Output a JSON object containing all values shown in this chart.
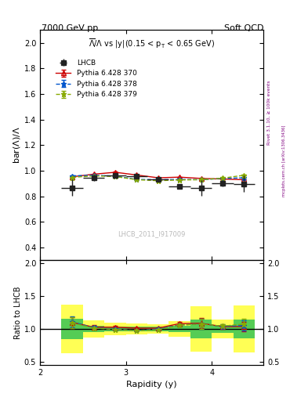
{
  "title_left": "7000 GeV pp",
  "title_right": "Soft QCD",
  "main_title": "$\\overline{\\Lambda}/\\Lambda$ vs |y|(0.15 < p$_{\\rm T}$ < 0.65 GeV)",
  "ylabel_main": "bar($\\Lambda$)/$\\Lambda$",
  "ylabel_ratio": "Ratio to LHCB",
  "xlabel": "Rapidity (y)",
  "watermark": "LHCB_2011_I917009",
  "rivet_label": "Rivet 3.1.10, ≥ 100k events",
  "arxiv_label": "mcplots.cern.ch [arXiv:1306.3436]",
  "lhcb_x": [
    2.375,
    2.625,
    2.875,
    3.125,
    3.375,
    3.625,
    3.875,
    4.125,
    4.375
  ],
  "lhcb_y": [
    0.867,
    0.947,
    0.962,
    0.955,
    0.933,
    0.878,
    0.865,
    0.903,
    0.898
  ],
  "lhcb_yerr": [
    0.065,
    0.025,
    0.018,
    0.015,
    0.014,
    0.02,
    0.06,
    0.025,
    0.065
  ],
  "lhcb_xerr": [
    0.125,
    0.125,
    0.125,
    0.125,
    0.125,
    0.125,
    0.125,
    0.125,
    0.125
  ],
  "p370_x": [
    2.375,
    2.625,
    2.875,
    3.125,
    3.375,
    3.625,
    3.875,
    4.125,
    4.375
  ],
  "p370_y": [
    0.953,
    0.973,
    0.988,
    0.967,
    0.945,
    0.95,
    0.94,
    0.935,
    0.93
  ],
  "p370_yerr": [
    0.003,
    0.003,
    0.003,
    0.003,
    0.003,
    0.003,
    0.003,
    0.003,
    0.004
  ],
  "p378_x": [
    2.375,
    2.625,
    2.875,
    3.125,
    3.375,
    3.625,
    3.875,
    4.125,
    4.375
  ],
  "p378_y": [
    0.96,
    0.965,
    0.958,
    0.932,
    0.93,
    0.932,
    0.93,
    0.94,
    0.945
  ],
  "p378_yerr": [
    0.003,
    0.003,
    0.003,
    0.003,
    0.003,
    0.003,
    0.003,
    0.004,
    0.004
  ],
  "p379_x": [
    2.375,
    2.625,
    2.875,
    3.125,
    3.375,
    3.625,
    3.875,
    4.125,
    4.375
  ],
  "p379_y": [
    0.948,
    0.96,
    0.955,
    0.93,
    0.922,
    0.928,
    0.93,
    0.942,
    0.965
  ],
  "p379_yerr": [
    0.003,
    0.003,
    0.003,
    0.003,
    0.003,
    0.003,
    0.003,
    0.004,
    0.004
  ],
  "ylim_main": [
    0.3,
    2.1
  ],
  "ylim_ratio": [
    0.45,
    2.05
  ],
  "xlim": [
    2.0,
    4.6
  ],
  "color_lhcb": "#222222",
  "color_p370": "#cc0000",
  "color_p378": "#0055cc",
  "color_p379": "#88aa00",
  "yticks_main": [
    0.4,
    0.6,
    0.8,
    1.0,
    1.2,
    1.4,
    1.6,
    1.8,
    2.0
  ],
  "yticks_ratio": [
    0.5,
    1.0,
    1.5,
    2.0
  ],
  "xticks": [
    2,
    3,
    4
  ]
}
